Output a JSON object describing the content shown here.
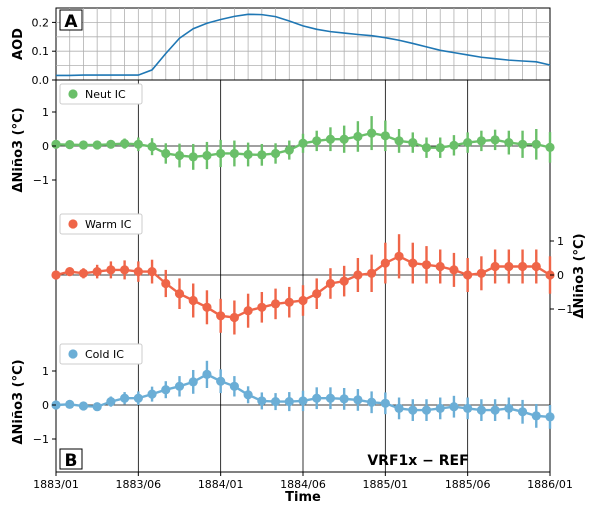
{
  "chart_data": [
    {
      "type": "line",
      "panel_label": "A",
      "ylabel": "AOD",
      "ylim": [
        0,
        0.25
      ],
      "yticks": [
        "0.0",
        "0.1",
        "0.2"
      ],
      "grid": true,
      "x": [
        0,
        1,
        2,
        3,
        4,
        5,
        6,
        7,
        8,
        9,
        10,
        11,
        12,
        13,
        14,
        15,
        16,
        17,
        18,
        19,
        20,
        21,
        22,
        23,
        24,
        25,
        26,
        27,
        28,
        29,
        30,
        31,
        32,
        33,
        34,
        35,
        36
      ],
      "series": [
        {
          "color": "#1f77b4",
          "values": [
            0.016,
            0.016,
            0.017,
            0.017,
            0.017,
            0.017,
            0.017,
            0.035,
            0.092,
            0.145,
            0.178,
            0.197,
            0.21,
            0.221,
            0.228,
            0.227,
            0.22,
            0.205,
            0.188,
            0.176,
            0.168,
            0.163,
            0.158,
            0.154,
            0.147,
            0.138,
            0.127,
            0.115,
            0.103,
            0.095,
            0.087,
            0.079,
            0.074,
            0.069,
            0.066,
            0.063,
            0.052
          ]
        }
      ]
    },
    {
      "type": "scatter",
      "panel_label": "B",
      "ylabel_left": "ΔNiño3 (°C)",
      "ylabel_right": "ΔNiño3 (°C)",
      "xlabel": "Time",
      "annotation": "VRF1x − REF",
      "xticks": [
        "1883/01",
        "1883/06",
        "1884/01",
        "1884/06",
        "1885/01",
        "1885/06",
        "1886/01"
      ],
      "yticks": [
        "−1",
        "0",
        "1"
      ],
      "x": [
        0,
        1,
        2,
        3,
        4,
        5,
        6,
        7,
        8,
        9,
        10,
        11,
        12,
        13,
        14,
        15,
        16,
        17,
        18,
        19,
        20,
        21,
        22,
        23,
        24,
        25,
        26,
        27,
        28,
        29,
        30,
        31,
        32,
        33,
        34,
        35,
        36
      ],
      "series": [
        {
          "name": "Neut IC",
          "color": "#6abf69",
          "values": [
            0.05,
            0.04,
            0.03,
            0.03,
            0.05,
            0.07,
            0.05,
            -0.02,
            -0.22,
            -0.28,
            -0.32,
            -0.28,
            -0.22,
            -0.22,
            -0.25,
            -0.26,
            -0.22,
            -0.12,
            0.08,
            0.15,
            0.2,
            0.2,
            0.28,
            0.38,
            0.3,
            0.15,
            0.1,
            -0.05,
            -0.05,
            0.02,
            0.1,
            0.15,
            0.18,
            0.1,
            0.05,
            0.05,
            -0.04
          ],
          "errors": [
            0.04,
            0.05,
            0.08,
            0.1,
            0.12,
            0.15,
            0.2,
            0.25,
            0.3,
            0.35,
            0.38,
            0.4,
            0.4,
            0.38,
            0.35,
            0.32,
            0.3,
            0.28,
            0.28,
            0.3,
            0.35,
            0.4,
            0.45,
            0.5,
            0.45,
            0.35,
            0.3,
            0.3,
            0.3,
            0.3,
            0.3,
            0.3,
            0.3,
            0.35,
            0.4,
            0.45,
            0.45
          ]
        },
        {
          "name": "Warm IC",
          "color": "#ef6548",
          "values": [
            0.0,
            0.1,
            0.05,
            0.1,
            0.15,
            0.15,
            0.1,
            0.1,
            -0.25,
            -0.55,
            -0.75,
            -0.95,
            -1.2,
            -1.25,
            -1.05,
            -0.95,
            -0.85,
            -0.8,
            -0.75,
            -0.55,
            -0.25,
            -0.18,
            0.0,
            0.05,
            0.35,
            0.55,
            0.35,
            0.3,
            0.25,
            0.15,
            0.0,
            0.05,
            0.25,
            0.25,
            0.25,
            0.25,
            0.0
          ],
          "errors": [
            0.08,
            0.1,
            0.15,
            0.2,
            0.25,
            0.28,
            0.3,
            0.35,
            0.4,
            0.45,
            0.5,
            0.5,
            0.5,
            0.5,
            0.5,
            0.45,
            0.45,
            0.45,
            0.45,
            0.45,
            0.45,
            0.45,
            0.5,
            0.55,
            0.6,
            0.65,
            0.6,
            0.55,
            0.5,
            0.5,
            0.5,
            0.5,
            0.5,
            0.5,
            0.5,
            0.5,
            0.55
          ]
        },
        {
          "name": "Cold IC",
          "color": "#6baed6",
          "values": [
            0.0,
            0.02,
            -0.03,
            -0.05,
            0.1,
            0.2,
            0.2,
            0.32,
            0.45,
            0.55,
            0.68,
            0.9,
            0.7,
            0.55,
            0.3,
            0.12,
            0.1,
            0.1,
            0.12,
            0.2,
            0.2,
            0.18,
            0.15,
            0.08,
            0.05,
            -0.1,
            -0.15,
            -0.15,
            -0.1,
            -0.05,
            -0.1,
            -0.15,
            -0.15,
            -0.1,
            -0.2,
            -0.32,
            -0.35
          ],
          "errors": [
            0.04,
            0.05,
            0.1,
            0.12,
            0.15,
            0.18,
            0.2,
            0.22,
            0.25,
            0.3,
            0.35,
            0.4,
            0.35,
            0.3,
            0.25,
            0.25,
            0.25,
            0.28,
            0.3,
            0.32,
            0.32,
            0.32,
            0.32,
            0.32,
            0.32,
            0.32,
            0.32,
            0.32,
            0.32,
            0.32,
            0.32,
            0.32,
            0.32,
            0.32,
            0.35,
            0.35,
            0.35
          ]
        }
      ]
    }
  ]
}
